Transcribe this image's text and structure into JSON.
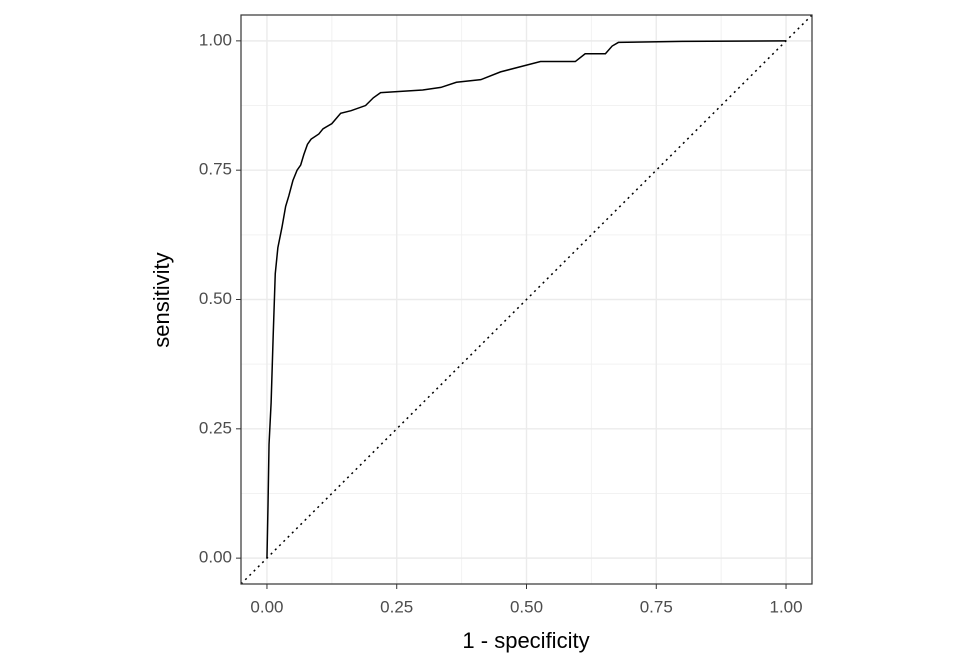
{
  "chart_data": {
    "type": "line",
    "x_label": "1 - specificity",
    "y_label": "sensitivity",
    "x": [
      0,
      0.002,
      0.004,
      0.008,
      0.012,
      0.016,
      0.021,
      0.029,
      0.036,
      0.042,
      0.05,
      0.058,
      0.065,
      0.071,
      0.078,
      0.085,
      0.1,
      0.108,
      0.125,
      0.142,
      0.162,
      0.19,
      0.205,
      0.219,
      0.3,
      0.335,
      0.365,
      0.412,
      0.45,
      0.488,
      0.527,
      0.594,
      0.613,
      0.652,
      0.665,
      0.677,
      0.8,
      1.0
    ],
    "values": [
      0,
      0.1,
      0.22,
      0.3,
      0.43,
      0.55,
      0.6,
      0.64,
      0.68,
      0.7,
      0.73,
      0.75,
      0.76,
      0.78,
      0.8,
      0.81,
      0.82,
      0.83,
      0.84,
      0.86,
      0.865,
      0.875,
      0.89,
      0.9,
      0.905,
      0.91,
      0.92,
      0.925,
      0.94,
      0.95,
      0.96,
      0.96,
      0.975,
      0.975,
      0.99,
      0.997,
      0.999,
      1.0
    ],
    "color": "#000000",
    "xlim": [
      -0.05,
      1.05
    ],
    "ylim": [
      -0.05,
      1.05
    ],
    "xticks": [
      {
        "value": 0,
        "label": "0.00"
      },
      {
        "value": 0.25,
        "label": "0.25"
      },
      {
        "value": 0.5,
        "label": "0.50"
      },
      {
        "value": 0.75,
        "label": "0.75"
      },
      {
        "value": 1,
        "label": "1.00"
      }
    ],
    "yticks": [
      {
        "value": 0,
        "label": "0.00"
      },
      {
        "value": 0.25,
        "label": "0.25"
      },
      {
        "value": 0.5,
        "label": "0.50"
      },
      {
        "value": 0.75,
        "label": "0.75"
      },
      {
        "value": 1,
        "label": "1.00"
      }
    ],
    "grid": true,
    "minor_grid": true,
    "diagonal": true
  }
}
